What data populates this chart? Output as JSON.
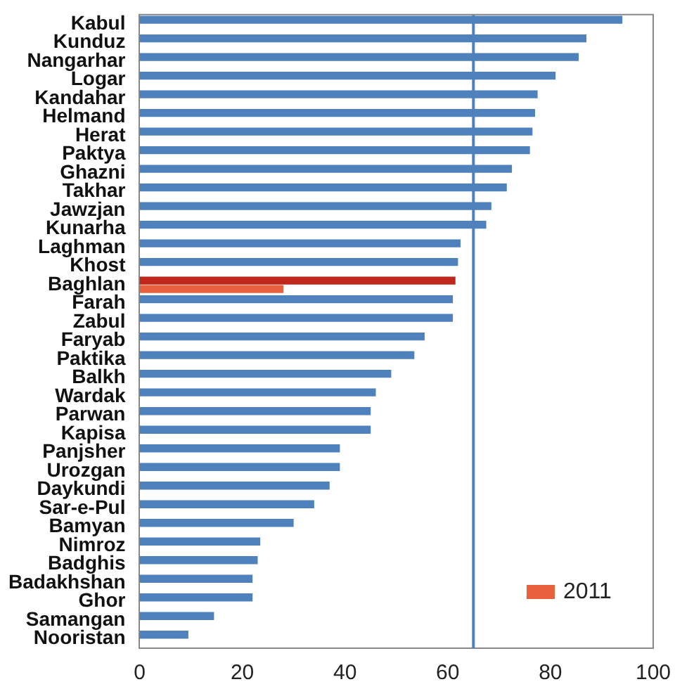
{
  "chart_data": {
    "type": "bar",
    "orientation": "horizontal",
    "categories": [
      "Kabul",
      "Kunduz",
      "Nangarhar",
      "Logar",
      "Kandahar",
      "Helmand",
      "Herat",
      "Paktya",
      "Ghazni",
      "Takhar",
      "Jawzjan",
      "Kunarha",
      "Laghman",
      "Khost",
      "Baghlan",
      "Farah",
      "Zabul",
      "Faryab",
      "Paktika",
      "Balkh",
      "Wardak",
      "Parwan",
      "Kapisa",
      "Panjsher",
      "Urozgan",
      "Daykundi",
      "Sar-e-Pul",
      "Bamyan",
      "Nimroz",
      "Badghis",
      "Badakhshan",
      "Ghor",
      "Samangan",
      "Nooristan"
    ],
    "series": [
      {
        "colors": [
          "#4f81bd",
          "#4f81bd",
          "#4f81bd",
          "#4f81bd",
          "#4f81bd",
          "#4f81bd",
          "#4f81bd",
          "#4f81bd",
          "#4f81bd",
          "#4f81bd",
          "#4f81bd",
          "#4f81bd",
          "#4f81bd",
          "#4f81bd",
          "#c0281e",
          "#4f81bd",
          "#4f81bd",
          "#4f81bd",
          "#4f81bd",
          "#4f81bd",
          "#4f81bd",
          "#4f81bd",
          "#4f81bd",
          "#4f81bd",
          "#4f81bd",
          "#4f81bd",
          "#4f81bd",
          "#4f81bd",
          "#4f81bd",
          "#4f81bd",
          "#4f81bd",
          "#4f81bd",
          "#4f81bd",
          "#4f81bd"
        ],
        "values": [
          94,
          87,
          85.5,
          81,
          77.5,
          77,
          76.5,
          76,
          72.5,
          71.5,
          68.5,
          67.5,
          62.5,
          62,
          61.5,
          61,
          61,
          55.5,
          53.5,
          49,
          46,
          45,
          45,
          39,
          39,
          37,
          34,
          30,
          23.5,
          23,
          22,
          22,
          14.5,
          9.5
        ]
      },
      {
        "name": "2011",
        "color": "#e8603c",
        "values": [
          null,
          null,
          null,
          null,
          null,
          null,
          null,
          null,
          null,
          null,
          null,
          null,
          null,
          null,
          28,
          null,
          null,
          null,
          null,
          null,
          null,
          null,
          null,
          null,
          null,
          null,
          null,
          null,
          null,
          null,
          null,
          null,
          null,
          null
        ]
      }
    ],
    "xlim": [
      0,
      100
    ],
    "xticks": [
      0,
      20,
      40,
      60,
      80,
      100
    ],
    "ref_lines": [
      {
        "axis": "x",
        "value": 65,
        "color": "#4f81bd"
      }
    ],
    "legend": "bottom right"
  }
}
